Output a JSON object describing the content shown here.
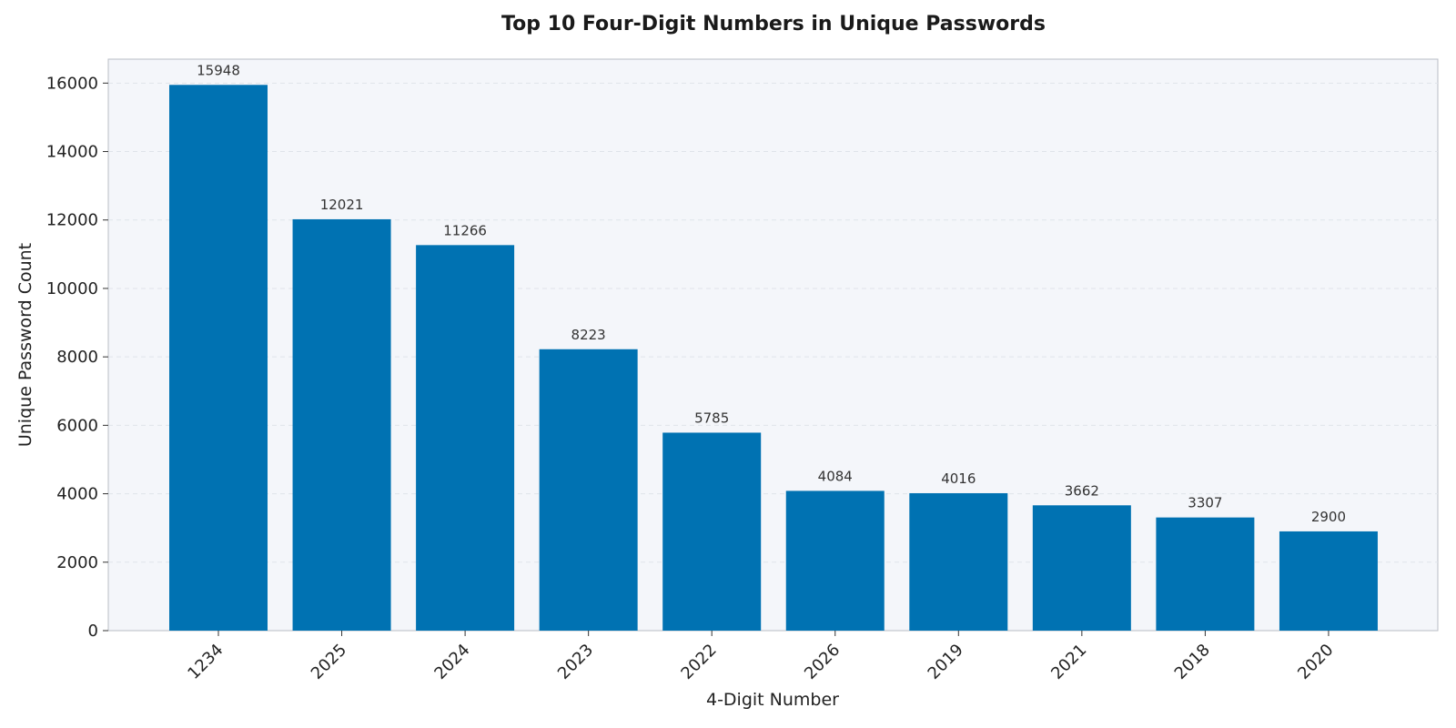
{
  "chart_data": {
    "type": "bar",
    "title": "Top 10 Four-Digit Numbers in Unique Passwords",
    "xlabel": "4-Digit Number",
    "ylabel": "Unique Password Count",
    "categories": [
      "1234",
      "2025",
      "2024",
      "2023",
      "2022",
      "2026",
      "2019",
      "2021",
      "2018",
      "2020"
    ],
    "values": [
      15948,
      12021,
      11266,
      8223,
      5785,
      4084,
      4016,
      3662,
      3307,
      2900
    ],
    "ylim": [
      0,
      16700
    ],
    "yticks": [
      0,
      2000,
      4000,
      6000,
      8000,
      10000,
      12000,
      14000,
      16000
    ],
    "grid": "horizontal dashed",
    "bar_color": "#0072b2",
    "plot_background": "#f4f6fa",
    "data_labels": true
  }
}
